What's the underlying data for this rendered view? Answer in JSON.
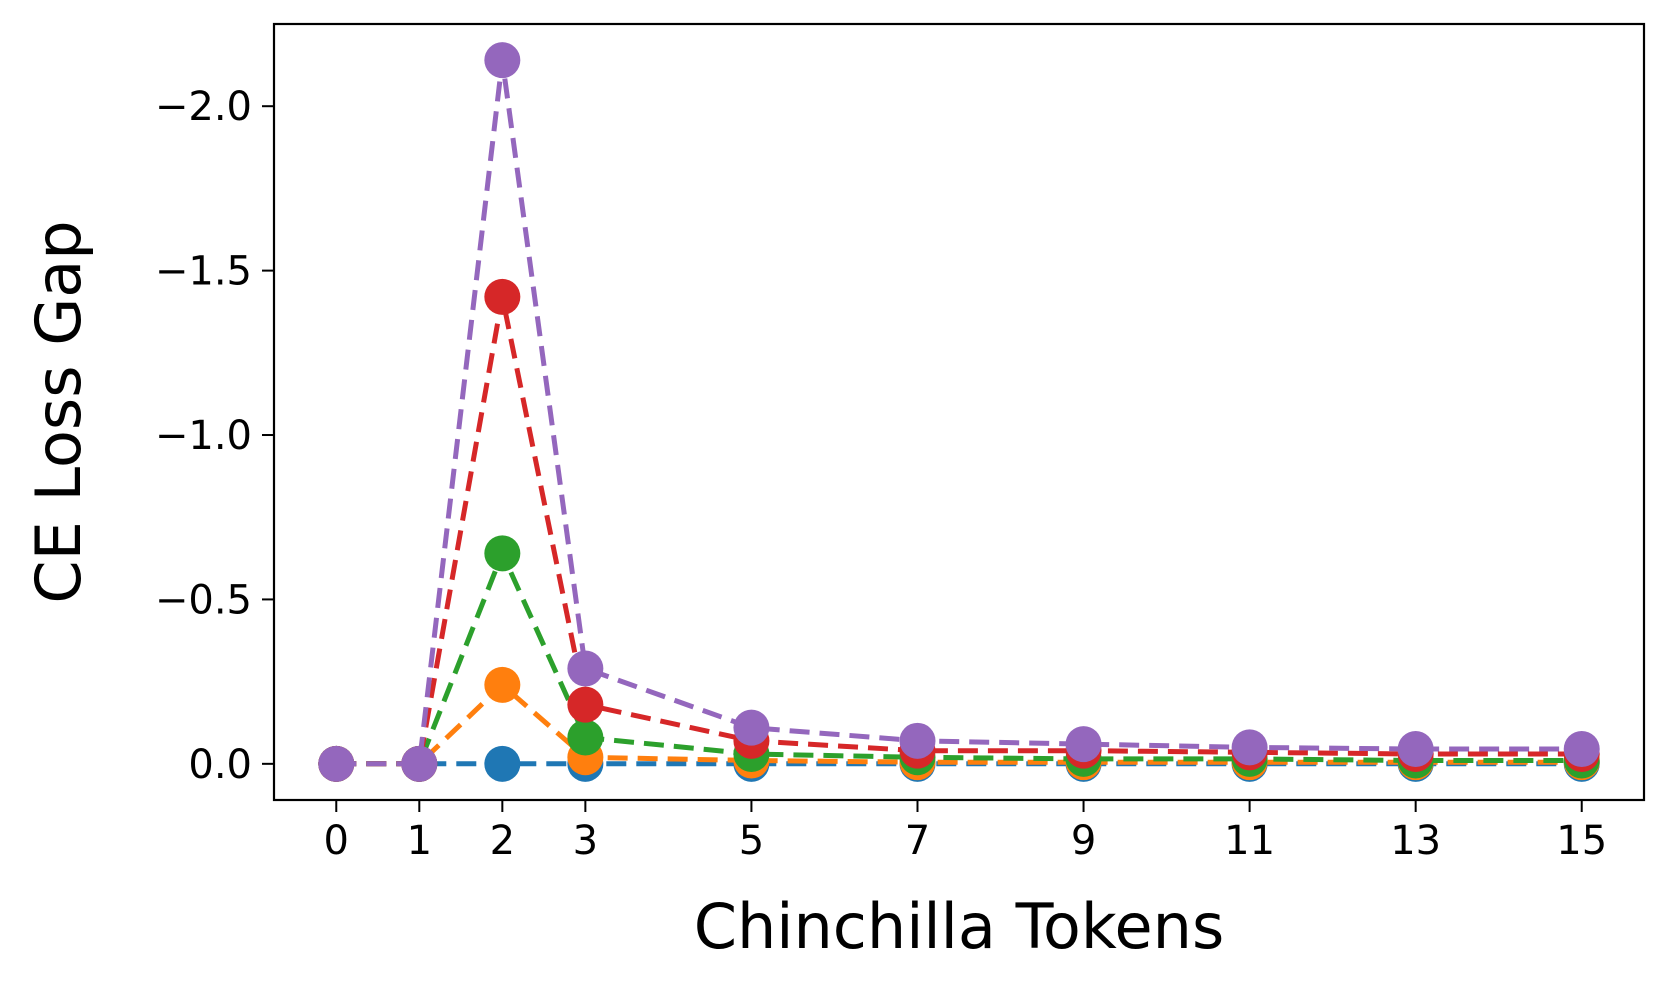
{
  "chart_data": {
    "type": "line",
    "title": "",
    "xlabel": "Chinchilla Tokens",
    "ylabel": "CE Loss Gap",
    "x": [
      0,
      1,
      2,
      3,
      5,
      7,
      9,
      11,
      13,
      15
    ],
    "x_ticks": [
      "0",
      "1",
      "2",
      "3",
      "5",
      "7",
      "9",
      "11",
      "13",
      "15"
    ],
    "y_ticks": [
      {
        "value": -2.0,
        "label": "−2.0"
      },
      {
        "value": -1.5,
        "label": "−1.5"
      },
      {
        "value": -1.0,
        "label": "−1.0"
      },
      {
        "value": -0.5,
        "label": "−0.5"
      },
      {
        "value": 0.0,
        "label": "0.0"
      }
    ],
    "xlim": [
      -0.75,
      15.75
    ],
    "ylim": [
      0.11,
      -2.25
    ],
    "y_inverted": true,
    "grid": false,
    "legend": "none",
    "line_style": "dashed",
    "marker": "circle",
    "series": [
      {
        "color": "#1f77b4",
        "values": [
          0,
          0,
          0,
          0,
          0,
          0,
          0,
          0,
          0,
          0
        ]
      },
      {
        "color": "#ff7f0e",
        "values": [
          0,
          0,
          -0.24,
          -0.02,
          -0.01,
          -0.005,
          -0.005,
          -0.005,
          -0.005,
          -0.005
        ]
      },
      {
        "color": "#2ca02c",
        "values": [
          0,
          0,
          -0.64,
          -0.08,
          -0.03,
          -0.02,
          -0.015,
          -0.015,
          -0.01,
          -0.01
        ]
      },
      {
        "color": "#d62728",
        "values": [
          0,
          0,
          -1.42,
          -0.18,
          -0.07,
          -0.04,
          -0.04,
          -0.035,
          -0.03,
          -0.03
        ]
      },
      {
        "color": "#9467bd",
        "values": [
          0,
          0,
          -2.14,
          -0.29,
          -0.11,
          -0.07,
          -0.06,
          -0.05,
          -0.045,
          -0.045
        ]
      }
    ]
  }
}
